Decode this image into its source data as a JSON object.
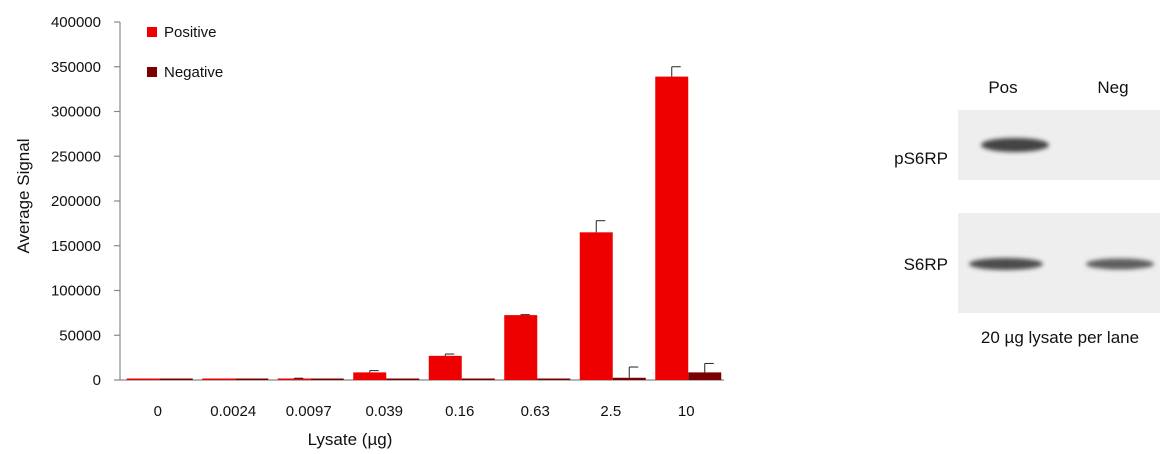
{
  "chart_data": {
    "type": "bar",
    "title": "",
    "xlabel": "Lysate (µg)",
    "ylabel": "Average Signal",
    "ylim": [
      0,
      400000
    ],
    "yticks": [
      0,
      50000,
      100000,
      150000,
      200000,
      250000,
      300000,
      350000,
      400000
    ],
    "grid": false,
    "legend_position": "top-left",
    "categories": [
      "0",
      "0.0024",
      "0.0097",
      "0.039",
      "0.16",
      "0.63",
      "2.5",
      "10"
    ],
    "series": [
      {
        "name": "Positive",
        "color": "#ee0000",
        "values": [
          500,
          700,
          1500,
          8500,
          27000,
          72500,
          165000,
          339000
        ],
        "errors": [
          0,
          0,
          500,
          2000,
          2000,
          500,
          13000,
          11000
        ]
      },
      {
        "name": "Negative",
        "color": "#7a0000",
        "values": [
          200,
          200,
          500,
          500,
          1500,
          600,
          2500,
          8500
        ],
        "errors": [
          0,
          0,
          0,
          0,
          0,
          0,
          12000,
          10000
        ]
      }
    ]
  },
  "blot": {
    "lane_headers": [
      "Pos",
      "Neg"
    ],
    "rows": [
      {
        "label": "pS6RP",
        "bands": [
          0.95,
          0
        ]
      },
      {
        "label": "S6RP",
        "bands": [
          0.9,
          0.8
        ]
      }
    ],
    "caption": "20 µg lysate per lane",
    "band_color": "#3a3a3a",
    "panel_color": "#eeeeee"
  }
}
